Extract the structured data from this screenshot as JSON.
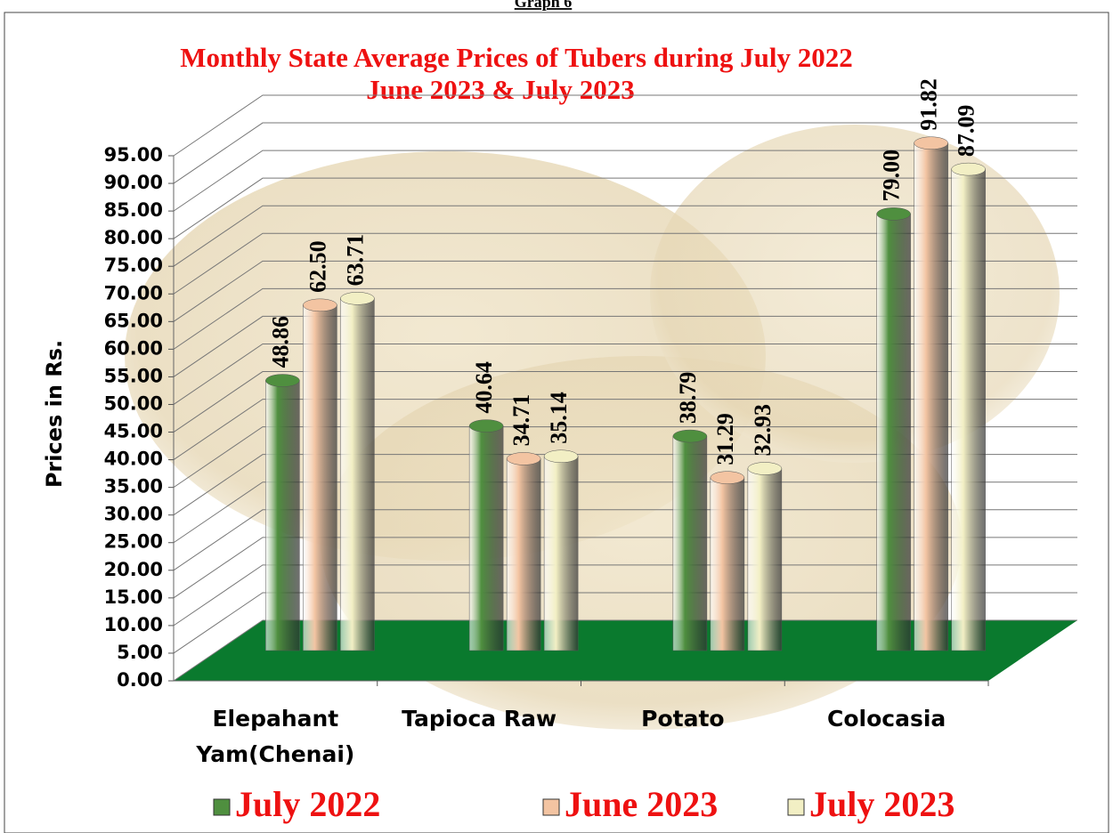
{
  "caption": "Graph 6",
  "chart_data": {
    "type": "bar",
    "title": [
      "Monthly State Average  Prices of Tubers during  July 2022",
      "June 2023  &  July 2023"
    ],
    "y_label": "Prices in Rs.",
    "categories": [
      "Elepahant Yam(Chenai)",
      "Tapioca Raw",
      "Potato",
      "Colocasia"
    ],
    "series": [
      {
        "name": "July 2022",
        "color": "#4f8f3f",
        "values": [
          48.86,
          40.64,
          38.79,
          79.0
        ],
        "value_labels": [
          "48.86",
          "40.64",
          "38.79",
          "79.00"
        ]
      },
      {
        "name": "June 2023",
        "color": "#f3c4a2",
        "values": [
          62.5,
          34.71,
          31.29,
          91.82
        ],
        "value_labels": [
          "62.50",
          "34.71",
          "31.29",
          "91.82"
        ]
      },
      {
        "name": "July 2023",
        "color": "#f2efc4",
        "values": [
          63.71,
          35.14,
          32.93,
          87.09
        ],
        "value_labels": [
          "63.71",
          "35.14",
          "32.93",
          "87.09"
        ]
      }
    ],
    "ylim": [
      0,
      95
    ],
    "yticks": [
      {
        "value": 0,
        "label": "0.00"
      },
      {
        "value": 5,
        "label": "5.00"
      },
      {
        "value": 10,
        "label": "10.00"
      },
      {
        "value": 15,
        "label": "15.00"
      },
      {
        "value": 20,
        "label": "20.00"
      },
      {
        "value": 25,
        "label": "25.00"
      },
      {
        "value": 30,
        "label": "30.00"
      },
      {
        "value": 35,
        "label": "35.00"
      },
      {
        "value": 40,
        "label": "40.00"
      },
      {
        "value": 45,
        "label": "45.00"
      },
      {
        "value": 50,
        "label": "50.00"
      },
      {
        "value": 55,
        "label": "55.00"
      },
      {
        "value": 60,
        "label": "60.00"
      },
      {
        "value": 65,
        "label": "65.00"
      },
      {
        "value": 70,
        "label": "70.00"
      },
      {
        "value": 75,
        "label": "75.00"
      },
      {
        "value": 80,
        "label": "80.00"
      },
      {
        "value": 85,
        "label": "85.00"
      },
      {
        "value": 90,
        "label": "90.00"
      },
      {
        "value": 95,
        "label": "95.00"
      }
    ],
    "grid": true,
    "legend": "bottom"
  }
}
